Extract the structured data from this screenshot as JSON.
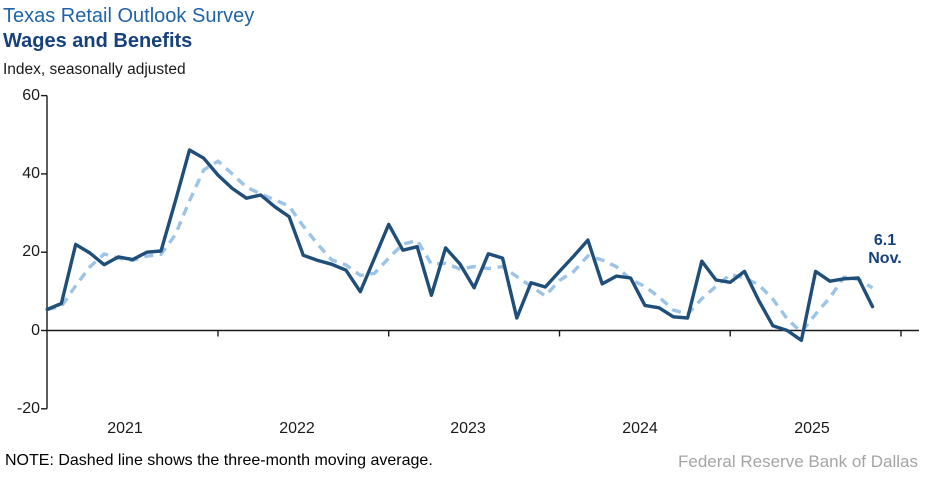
{
  "header": {
    "title": "Texas Retail Outlook Survey",
    "subtitle": "Wages and Benefits",
    "axis_caption": "Index, seasonally adjusted"
  },
  "chart_data": {
    "type": "line",
    "title": "Texas Retail Outlook Survey — Wages and Benefits",
    "xlabel": "",
    "ylabel": "Index, seasonally adjusted",
    "ylim": [
      -20,
      60
    ],
    "grid": false,
    "legend_position": "none",
    "y_ticks": [
      60,
      40,
      20,
      0,
      -20
    ],
    "x_tick_labels": [
      "2021",
      "2022",
      "2023",
      "2024",
      "2025"
    ],
    "x": [
      "Jan 2021",
      "Feb 2021",
      "Mar 2021",
      "Apr 2021",
      "May 2021",
      "Jun 2021",
      "Jul 2021",
      "Aug 2021",
      "Sep 2021",
      "Oct 2021",
      "Nov 2021",
      "Dec 2021",
      "Jan 2022",
      "Feb 2022",
      "Mar 2022",
      "Apr 2022",
      "May 2022",
      "Jun 2022",
      "Jul 2022",
      "Aug 2022",
      "Sep 2022",
      "Oct 2022",
      "Nov 2022",
      "Dec 2022",
      "Jan 2023",
      "Feb 2023",
      "Mar 2023",
      "Apr 2023",
      "May 2023",
      "Jun 2023",
      "Jul 2023",
      "Aug 2023",
      "Sep 2023",
      "Oct 2023",
      "Nov 2023",
      "Dec 2023",
      "Jan 2024",
      "Feb 2024",
      "Mar 2024",
      "Apr 2024",
      "May 2024",
      "Jun 2024",
      "Jul 2024",
      "Aug 2024",
      "Sep 2024",
      "Oct 2024",
      "Nov 2024",
      "Dec 2024",
      "Jan 2025",
      "Feb 2025",
      "Mar 2025",
      "Apr 2025",
      "May 2025",
      "Jun 2025",
      "Jul 2025",
      "Aug 2025",
      "Sep 2025",
      "Oct 2025",
      "Nov 2025"
    ],
    "series": [
      {
        "name": "Wages and benefits index",
        "style": "solid",
        "color": "#1f4e79",
        "values": [
          5.4,
          6.9,
          22.0,
          19.8,
          16.8,
          18.8,
          18.1,
          20.0,
          20.3,
          33.0,
          46.1,
          44.0,
          39.7,
          36.3,
          33.8,
          34.6,
          31.6,
          29.1,
          19.2,
          17.9,
          16.9,
          15.4,
          9.9,
          18.5,
          27.1,
          20.5,
          21.4,
          9.0,
          21.1,
          17.0,
          10.9,
          19.6,
          18.5,
          3.2,
          12.2,
          11.1,
          15.1,
          19.0,
          23.1,
          11.9,
          13.9,
          13.4,
          6.4,
          5.8,
          3.5,
          3.2,
          17.7,
          12.9,
          12.3,
          15.1,
          7.7,
          1.2,
          0.0,
          -2.5,
          15.1,
          12.6,
          13.2,
          13.4,
          6.1
        ]
      },
      {
        "name": "Three-month moving average",
        "style": "dashed",
        "color": "#9dc3e6",
        "derived": "3-month moving average of series 0"
      }
    ],
    "annotation": {
      "value": "6.1",
      "month": "Nov."
    }
  },
  "note": "NOTE: Dashed line shows the three-month moving average.",
  "source": "Federal Reserve Bank of Dallas"
}
